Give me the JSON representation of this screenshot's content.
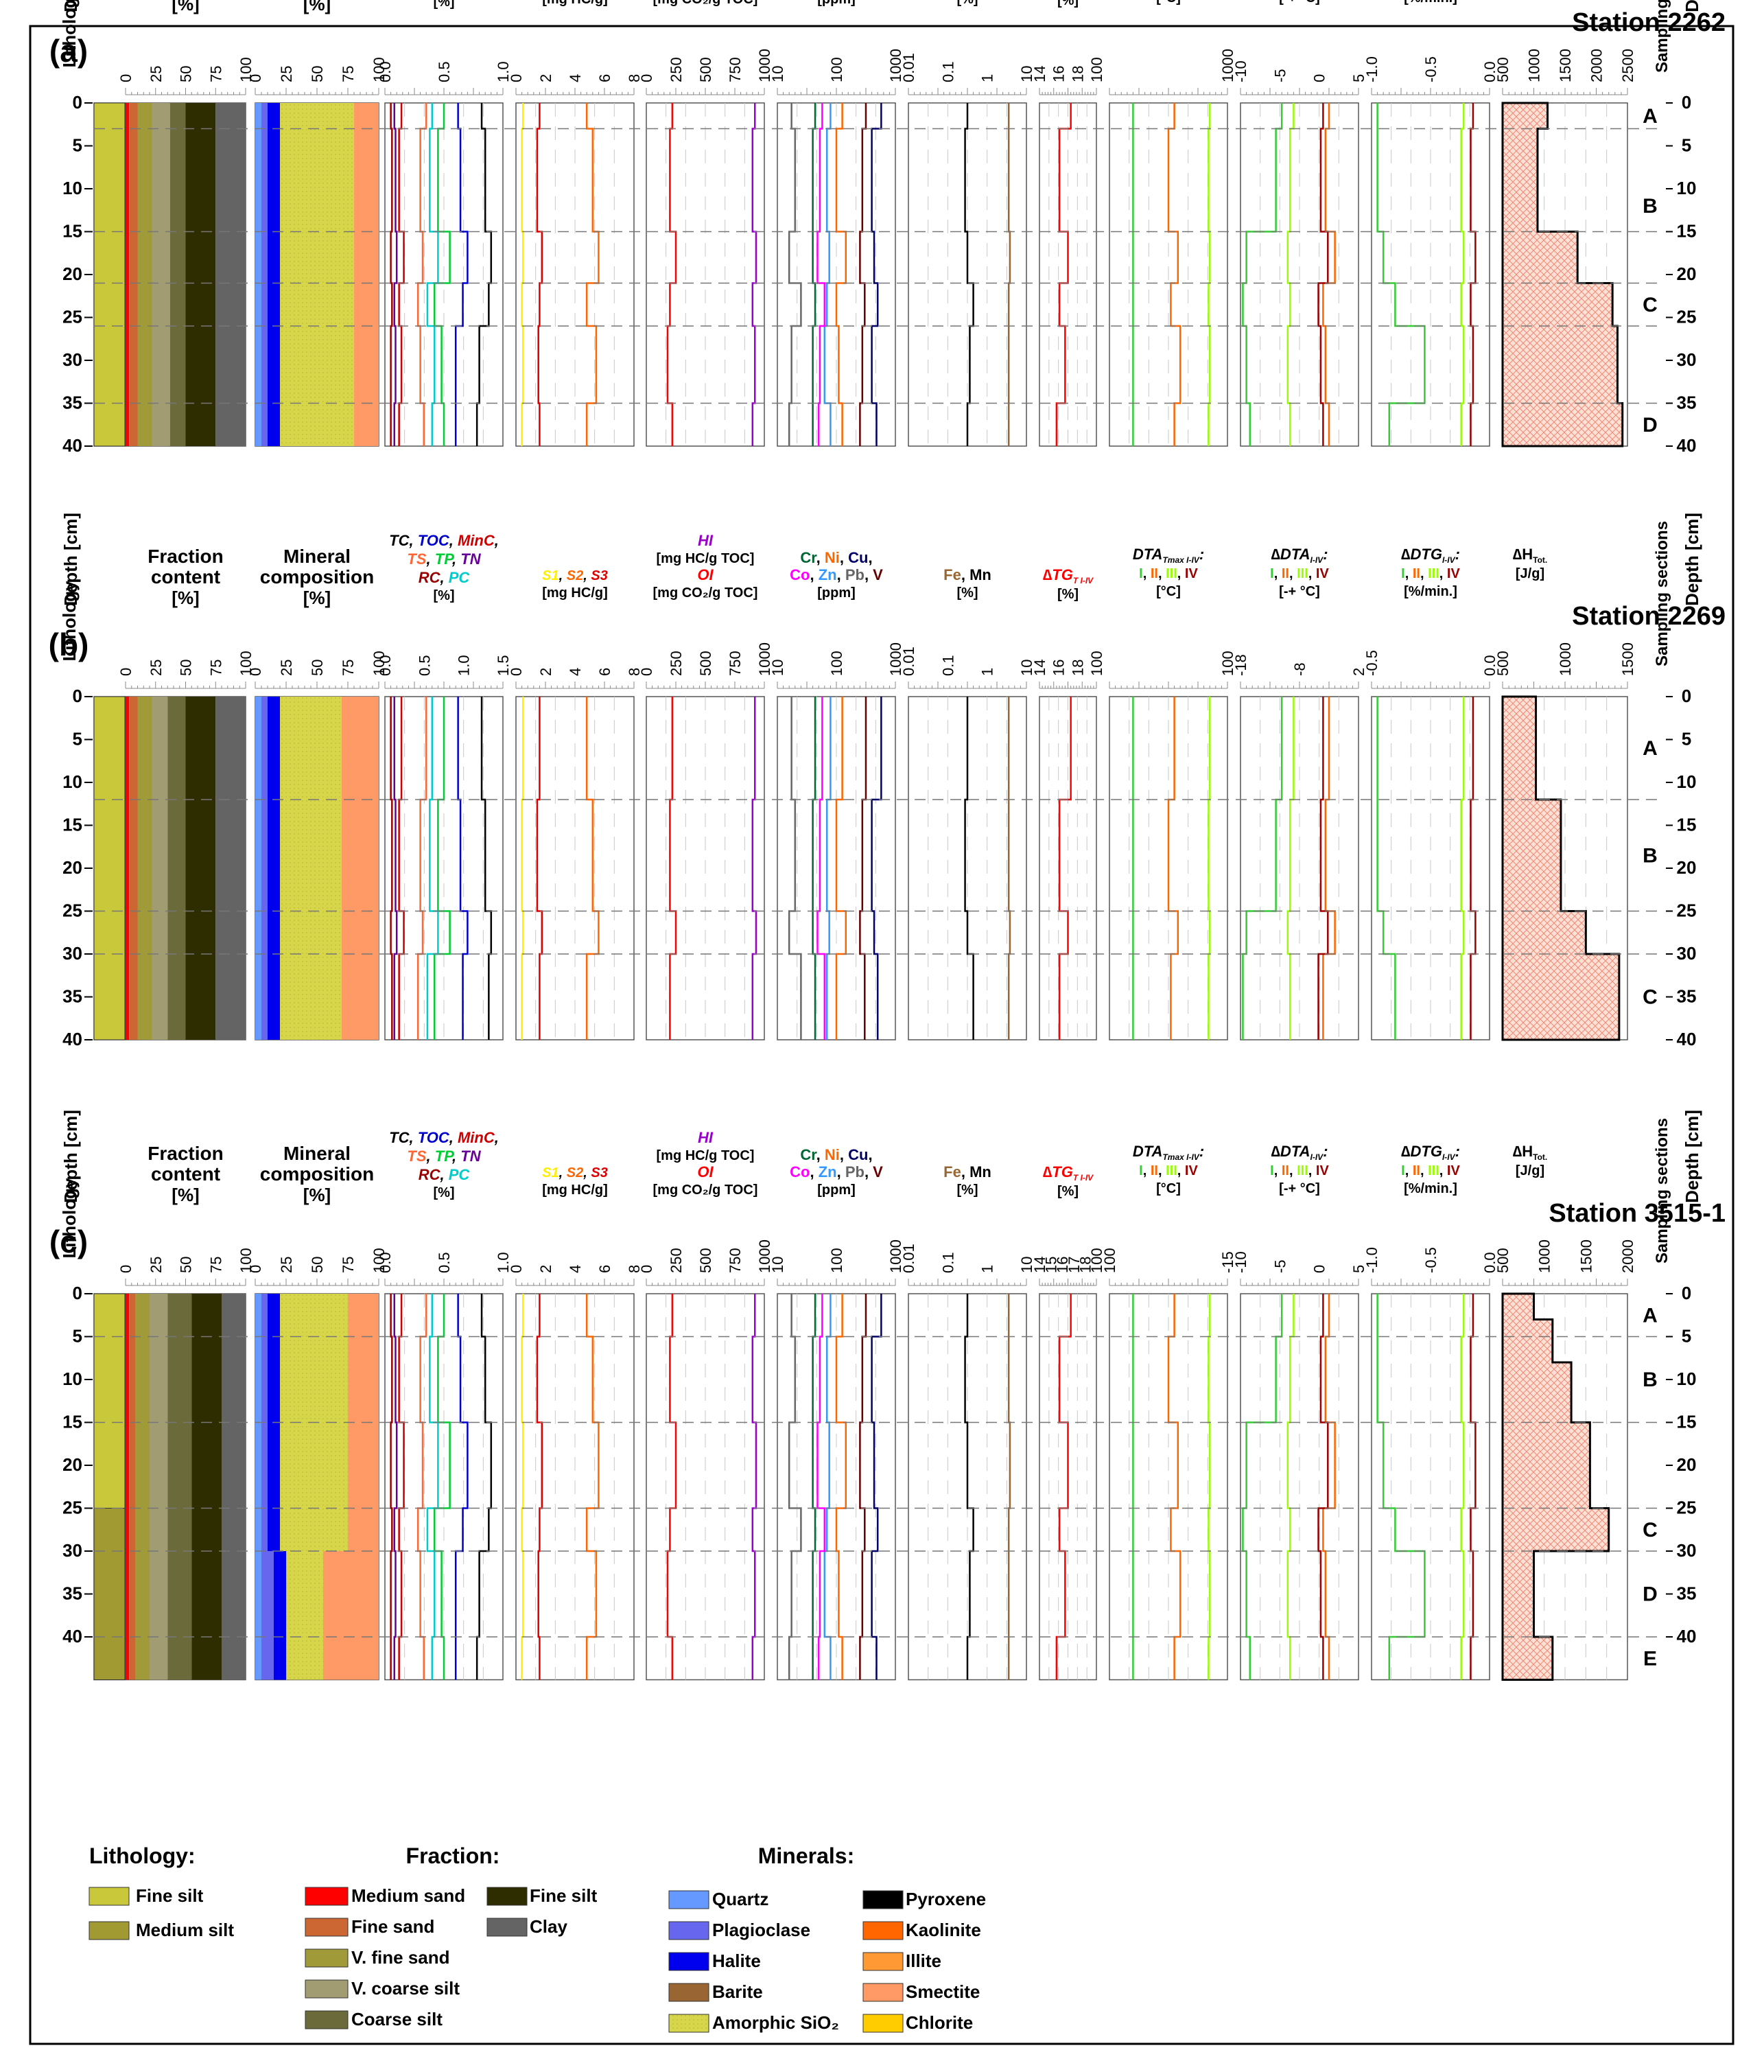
{
  "colors": {
    "litho": {
      "fine_silt": "#c9c83a",
      "medium_silt": "#a19a33"
    },
    "fraction": {
      "medium_sand": "#ff0000",
      "fine_sand": "#cc6633",
      "vf_sand": "#a09a38",
      "vc_silt": "#a29c72",
      "coarse_silt": "#6a6a3a",
      "fine_silt": "#2d2d00",
      "clay": "#646464"
    },
    "minerals": {
      "quartz": "#6699ff",
      "plagioclase": "#6666ee",
      "halite": "#0000ee",
      "barite": "#996633",
      "amorphic": "#d7d64a",
      "pyroxene": "#000000",
      "kaolinite": "#ff6600",
      "illite": "#ff9933",
      "smectite": "#ff9966",
      "chlorite": "#ffcc00"
    },
    "series": {
      "TC": "#000000",
      "TOC": "#0000cc",
      "MinC": "#cc0000",
      "TS": "#ff6633",
      "TP": "#00cc33",
      "TN": "#660099",
      "RC": "#990000",
      "PC": "#00cccc",
      "S1": "#ffee00",
      "S2": "#ff6600",
      "S3": "#dd0000",
      "HI": "#9900cc",
      "OI": "#ff0000",
      "Cr": "#006633",
      "Ni": "#ff6600",
      "Cu": "#000066",
      "Co": "#ff00ff",
      "Zn": "#3399ff",
      "Pb": "#666666",
      "V": "#660000",
      "Fe": "#996633",
      "Mn": "#000000",
      "I": "#33cc33",
      "II": "#ff6600",
      "III": "#99ff00",
      "IV": "#990000",
      "dH": "#000000"
    }
  },
  "header_labels": {
    "lithology": "Lithology",
    "depth": "Depth [cm]",
    "sampling": "Sampling sections",
    "frac_l1": "Fraction",
    "frac_l2": "content",
    "frac_l3": "[%]",
    "min_l1": "Mineral",
    "min_l2": "composition",
    "min_l3": "[%]",
    "carbon_l1": [
      "TC",
      ", ",
      "TOC",
      ", ",
      "MinC",
      ","
    ],
    "carbon_l2": [
      "TS",
      ", ",
      "TP",
      ", ",
      "TN"
    ],
    "carbon_l3": [
      "RC",
      ", ",
      "PC"
    ],
    "carbon_unit": "[%]",
    "s_l1": [
      "S1",
      ", ",
      "S2",
      ", ",
      "S3"
    ],
    "s_unit": "[mg HC/g]",
    "hi": "HI",
    "hi_unit": "[mg HC/g TOC]",
    "oi": "OI",
    "oi_unit": "[mg CO₂/g TOC]",
    "metals_l1": [
      "Cr",
      ", ",
      "Ni",
      ", ",
      "Cu",
      ","
    ],
    "metals_l2": [
      "Co",
      ", ",
      "Zn",
      ", ",
      "Pb",
      ", ",
      "V"
    ],
    "metals_unit": "[ppm]",
    "femn": [
      "Fe",
      ", ",
      "Mn"
    ],
    "femn_unit": "[%]",
    "dtg": "∆TG",
    "dtg_sub": "T I-IV",
    "dtg_unit": "[%]",
    "dta_tmax": "DTA",
    "dta_tmax_sub": "Tmax I-IV",
    "dta_tmax_colon": ":",
    "roman": [
      "I",
      ", ",
      "II",
      ", ",
      "III",
      ", ",
      "IV"
    ],
    "dta_tmax_unit": "[°C]",
    "ddta": "∆DTA",
    "ddta_sub": "I-IV",
    "ddta_unit": "[-+ °C]",
    "ddtg": "∆DTG",
    "ddtg_sub": "I-IV",
    "ddtg_unit": "[%/min.]",
    "dh": "∆H",
    "dh_sub": "Tot.",
    "dh_unit": "[J/g]"
  },
  "legend": {
    "lithology_title": "Lithology:",
    "lithology": [
      {
        "label": "Fine silt",
        "key": "fine_silt"
      },
      {
        "label": "Medium silt",
        "key": "medium_silt"
      }
    ],
    "fraction_title": "Fraction:",
    "fraction_col1": [
      {
        "label": "Medium sand",
        "key": "medium_sand"
      },
      {
        "label": "Fine sand",
        "key": "fine_sand"
      },
      {
        "label": "V. fine sand",
        "key": "vf_sand"
      },
      {
        "label": "V. coarse silt",
        "key": "vc_silt"
      },
      {
        "label": "Coarse silt",
        "key": "coarse_silt"
      }
    ],
    "fraction_col2": [
      {
        "label": "Fine silt",
        "key": "fine_silt"
      },
      {
        "label": "Clay",
        "key": "clay"
      }
    ],
    "minerals_title": "Minerals:",
    "minerals_col1": [
      {
        "label": "Quartz",
        "key": "quartz"
      },
      {
        "label": "Plagioclase",
        "key": "plagioclase"
      },
      {
        "label": "Halite",
        "key": "halite"
      },
      {
        "label": "Barite",
        "key": "barite"
      },
      {
        "label": "Amorphic SiO₂",
        "key": "amorphic"
      }
    ],
    "minerals_col2": [
      {
        "label": "Pyroxene",
        "key": "pyroxene"
      },
      {
        "label": "Kaolinite",
        "key": "kaolinite"
      },
      {
        "label": "Illite",
        "key": "illite"
      },
      {
        "label": "Smectite",
        "key": "smectite"
      },
      {
        "label": "Chlorite",
        "key": "chlorite"
      }
    ]
  },
  "chart_data": [
    {
      "type": "area",
      "panel": "(a)",
      "station": "Station 2262",
      "depth_ticks": [
        "0",
        "5",
        "10",
        "15",
        "20",
        "25",
        "30",
        "35",
        "40"
      ],
      "depth_range": [
        0,
        40
      ],
      "section_boundaries_cm": [
        3,
        15,
        21,
        26,
        35
      ],
      "sections": [
        {
          "label": "A",
          "depth": 1.5
        },
        {
          "label": "B",
          "depth": 12
        },
        {
          "label": "C",
          "depth": 23.5
        },
        {
          "label": "D",
          "depth": 37.5
        }
      ],
      "lithology": [
        {
          "top": 0,
          "bottom": 40,
          "key": "fine_silt"
        }
      ],
      "fraction_breaks": [
        [
          0,
          40,
          [
            3,
            10,
            22,
            37,
            50,
            75,
            100
          ]
        ]
      ],
      "minerals_breaks": [
        [
          0,
          40,
          [
            5,
            10,
            20,
            80,
            100
          ]
        ]
      ],
      "dH": {
        "depths": [
          0,
          3,
          15,
          21,
          26,
          35,
          40
        ],
        "values": [
          900,
          700,
          1500,
          2200,
          2300,
          2400
        ]
      },
      "axis_ticks": {
        "carbon": [
          "0.0",
          "0.5",
          "1.0"
        ],
        "s": [
          "0",
          "2",
          "4",
          "6",
          "8"
        ],
        "hioi": [
          "0",
          "250",
          "500",
          "750",
          "1000"
        ],
        "metals": [
          "10",
          "100",
          "1000"
        ],
        "femn": [
          "0.01",
          "0.1",
          "1",
          "10"
        ],
        "dtg": [
          "14",
          "16",
          "18",
          "100"
        ],
        "dtatmax": [
          "1000"
        ],
        "ddta": [
          "-10",
          "-5",
          "0",
          "5"
        ],
        "ddtg": [
          "-1.0",
          "-0.5",
          "0.0"
        ],
        "dh": [
          "500",
          "1000",
          "1500",
          "2000",
          "2500"
        ]
      }
    },
    {
      "type": "area",
      "panel": "(b)",
      "station": "Station 2269",
      "depth_ticks": [
        "0",
        "5",
        "10",
        "15",
        "20",
        "25",
        "30",
        "35",
        "40"
      ],
      "depth_range": [
        0,
        40
      ],
      "section_boundaries_cm": [
        12,
        25,
        30
      ],
      "sections": [
        {
          "label": "A",
          "depth": 6
        },
        {
          "label": "B",
          "depth": 18.5
        },
        {
          "label": "C",
          "depth": 35
        }
      ],
      "lithology": [
        {
          "top": 0,
          "bottom": 40,
          "key": "fine_silt"
        }
      ],
      "fraction_breaks": [
        [
          0,
          40,
          [
            3,
            10,
            22,
            35,
            50,
            75,
            100
          ]
        ]
      ],
      "minerals_breaks": [
        [
          0,
          40,
          [
            5,
            10,
            20,
            70,
            100
          ]
        ]
      ],
      "dH": {
        "depths": [
          0,
          12,
          25,
          30,
          40
        ],
        "values": [
          400,
          700,
          1000,
          1400
        ]
      },
      "axis_ticks": {
        "carbon": [
          "0.0",
          "0.5",
          "1.0",
          "1.5"
        ],
        "s": [
          "0",
          "2",
          "4",
          "6",
          "8"
        ],
        "hioi": [
          "0",
          "250",
          "500",
          "750",
          "1000"
        ],
        "metals": [
          "10",
          "100",
          "1000"
        ],
        "femn": [
          "0.01",
          "0.1",
          "1",
          "10"
        ],
        "dtg": [
          "14",
          "16",
          "18",
          "100"
        ],
        "dtatmax": [
          "100"
        ],
        "ddta": [
          "-18",
          "-8",
          "2"
        ],
        "ddtg": [
          "-0.5",
          "0.0"
        ],
        "dh": [
          "500",
          "1000",
          "1500"
        ]
      }
    },
    {
      "type": "area",
      "panel": "(c)",
      "station": "Station 3515-1",
      "depth_ticks": [
        "0",
        "5",
        "10",
        "15",
        "20",
        "25",
        "30",
        "35",
        "40"
      ],
      "depth_range": [
        0,
        45
      ],
      "section_boundaries_cm": [
        5,
        15,
        25,
        30,
        40
      ],
      "sections": [
        {
          "label": "A",
          "depth": 2.5
        },
        {
          "label": "B",
          "depth": 10
        },
        {
          "label": "C",
          "depth": 27.5
        },
        {
          "label": "D",
          "depth": 35
        },
        {
          "label": "E",
          "depth": 42.5
        }
      ],
      "lithology": [
        {
          "top": 0,
          "bottom": 25,
          "key": "fine_silt"
        },
        {
          "top": 25,
          "bottom": 45,
          "key": "medium_silt"
        }
      ],
      "fraction_breaks": [
        [
          0,
          45,
          [
            3,
            8,
            20,
            35,
            55,
            80,
            100
          ]
        ]
      ],
      "minerals_breaks": [
        [
          0,
          30,
          [
            5,
            10,
            20,
            75,
            100
          ]
        ],
        [
          30,
          45,
          [
            5,
            15,
            25,
            55,
            100
          ]
        ]
      ],
      "dH": {
        "depths": [
          0,
          3,
          8,
          15,
          25,
          30,
          40,
          45
        ],
        "values": [
          500,
          800,
          1100,
          1400,
          1700,
          500,
          800
        ]
      },
      "axis_ticks": {
        "carbon": [
          "0.0",
          "0.5",
          "1.0"
        ],
        "s": [
          "0",
          "2",
          "4",
          "6",
          "8"
        ],
        "hioi": [
          "0",
          "250",
          "500",
          "750",
          "1000"
        ],
        "metals": [
          "10",
          "100",
          "1000"
        ],
        "femn": [
          "0.01",
          "0.1",
          "1",
          "10"
        ],
        "dtg": [
          "14",
          "15",
          "16",
          "17",
          "18",
          "100"
        ],
        "dtatmax": [
          "100",
          "-15"
        ],
        "ddta": [
          "-10",
          "-5",
          "0",
          "5"
        ],
        "ddtg": [
          "-1.0",
          "-0.5",
          "0.0"
        ],
        "dh": [
          "500",
          "1000",
          "1500",
          "2000"
        ]
      }
    }
  ]
}
